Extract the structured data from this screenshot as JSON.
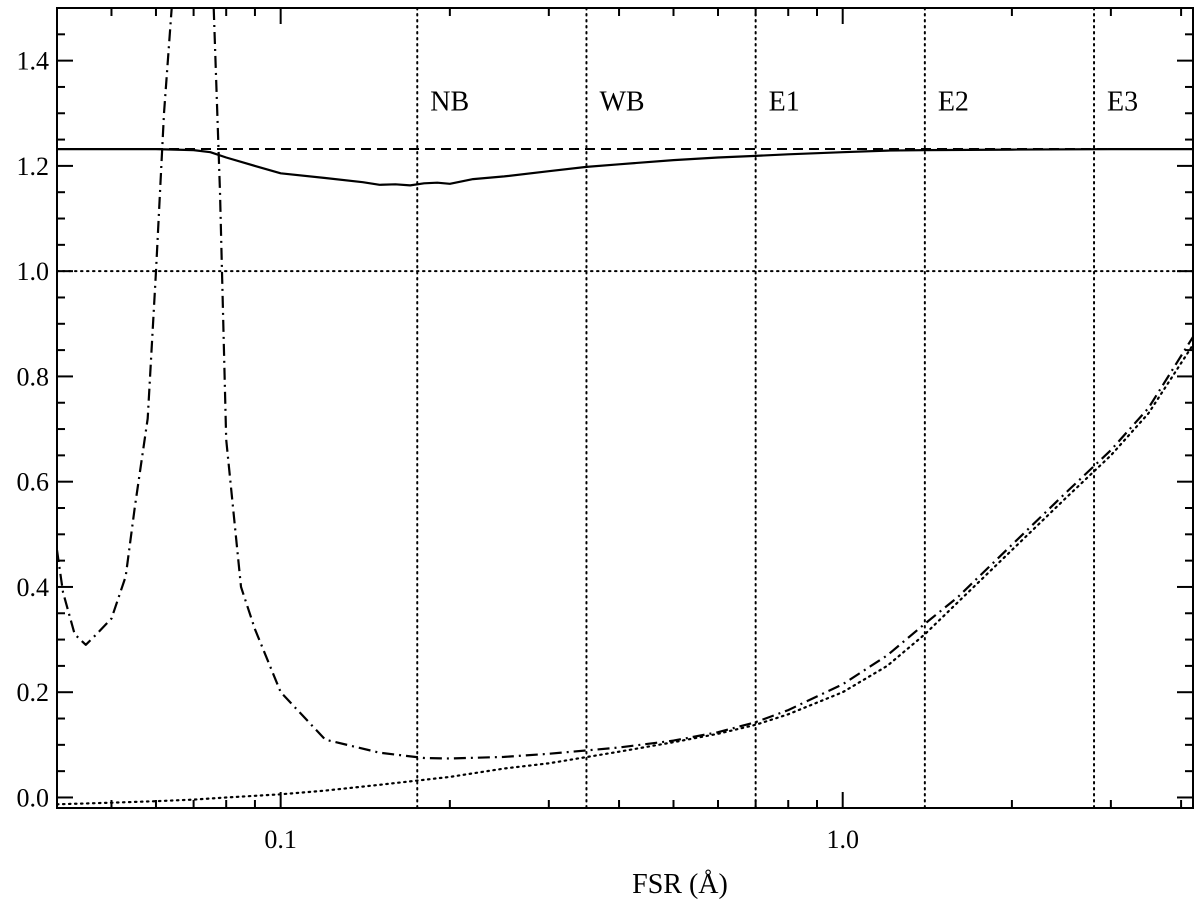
{
  "chart_data": {
    "type": "line",
    "title": "",
    "xlabel": "FSR (Å)",
    "ylabel": "",
    "xscale": "log",
    "xlim": [
      0.04,
      4.2
    ],
    "ylim": [
      -0.02,
      1.5
    ],
    "grid": false,
    "x_ticks": [
      {
        "value": 0.1,
        "label": "0.1"
      },
      {
        "value": 1.0,
        "label": "1.0"
      }
    ],
    "y_ticks": [
      {
        "value": 0.0,
        "label": "0.0"
      },
      {
        "value": 0.2,
        "label": "0.2"
      },
      {
        "value": 0.4,
        "label": "0.4"
      },
      {
        "value": 0.6,
        "label": "0.6"
      },
      {
        "value": 0.8,
        "label": "0.8"
      },
      {
        "value": 1.0,
        "label": "1.0"
      },
      {
        "value": 1.2,
        "label": "1.2"
      },
      {
        "value": 1.4,
        "label": "1.4"
      }
    ],
    "reference_lines": [
      {
        "orientation": "horizontal",
        "value": 1.232,
        "style": "dashed"
      },
      {
        "orientation": "horizontal",
        "value": 1.0,
        "style": "dotted"
      }
    ],
    "vertical_markers": [
      {
        "x": 0.175,
        "label": "NB"
      },
      {
        "x": 0.35,
        "label": "WB"
      },
      {
        "x": 0.7,
        "label": "E1"
      },
      {
        "x": 1.4,
        "label": "E2"
      },
      {
        "x": 2.8,
        "label": "E3"
      }
    ],
    "series": [
      {
        "style": "solid",
        "x": [
          0.04,
          0.05,
          0.06,
          0.07,
          0.075,
          0.08,
          0.09,
          0.1,
          0.12,
          0.14,
          0.15,
          0.16,
          0.17,
          0.18,
          0.19,
          0.2,
          0.22,
          0.25,
          0.3,
          0.35,
          0.4,
          0.5,
          0.6,
          0.7,
          0.8,
          1.0,
          1.2,
          1.4,
          2.0,
          3.0,
          4.2
        ],
        "y": [
          1.232,
          1.232,
          1.232,
          1.23,
          1.226,
          1.216,
          1.2,
          1.186,
          1.177,
          1.169,
          1.164,
          1.165,
          1.163,
          1.167,
          1.168,
          1.166,
          1.175,
          1.18,
          1.19,
          1.198,
          1.203,
          1.211,
          1.216,
          1.219,
          1.222,
          1.226,
          1.229,
          1.23,
          1.231,
          1.232,
          1.232
        ]
      },
      {
        "style": "dash-dot",
        "x": [
          0.04,
          0.041,
          0.043,
          0.045,
          0.047,
          0.05,
          0.053,
          0.055,
          0.058,
          0.06,
          0.062,
          0.064
        ],
        "y": [
          0.47,
          0.39,
          0.31,
          0.29,
          0.31,
          0.34,
          0.42,
          0.55,
          0.72,
          1.0,
          1.3,
          1.5
        ]
      },
      {
        "style": "dash-dot",
        "x": [
          0.076,
          0.078,
          0.08,
          0.085,
          0.09,
          0.1,
          0.12,
          0.15,
          0.18,
          0.2,
          0.25,
          0.3,
          0.4,
          0.5,
          0.6,
          0.7,
          0.8,
          1.0,
          1.2,
          1.4,
          1.6,
          2.0,
          2.5,
          3.0,
          3.5,
          4.2
        ],
        "y": [
          1.5,
          1.15,
          0.68,
          0.4,
          0.32,
          0.2,
          0.11,
          0.085,
          0.075,
          0.074,
          0.077,
          0.083,
          0.095,
          0.108,
          0.124,
          0.143,
          0.166,
          0.215,
          0.27,
          0.33,
          0.38,
          0.48,
          0.58,
          0.66,
          0.74,
          0.875
        ]
      },
      {
        "style": "dotted",
        "x": [
          0.04,
          0.05,
          0.06,
          0.07,
          0.08,
          0.1,
          0.12,
          0.15,
          0.2,
          0.25,
          0.3,
          0.4,
          0.5,
          0.6,
          0.7,
          0.8,
          1.0,
          1.2,
          1.4,
          1.6,
          2.0,
          2.5,
          3.0,
          3.5,
          4.2
        ],
        "y": [
          -0.013,
          -0.01,
          -0.007,
          -0.004,
          0.0,
          0.006,
          0.013,
          0.024,
          0.039,
          0.055,
          0.065,
          0.087,
          0.105,
          0.121,
          0.138,
          0.158,
          0.2,
          0.25,
          0.31,
          0.37,
          0.47,
          0.57,
          0.65,
          0.73,
          0.86
        ]
      }
    ]
  }
}
